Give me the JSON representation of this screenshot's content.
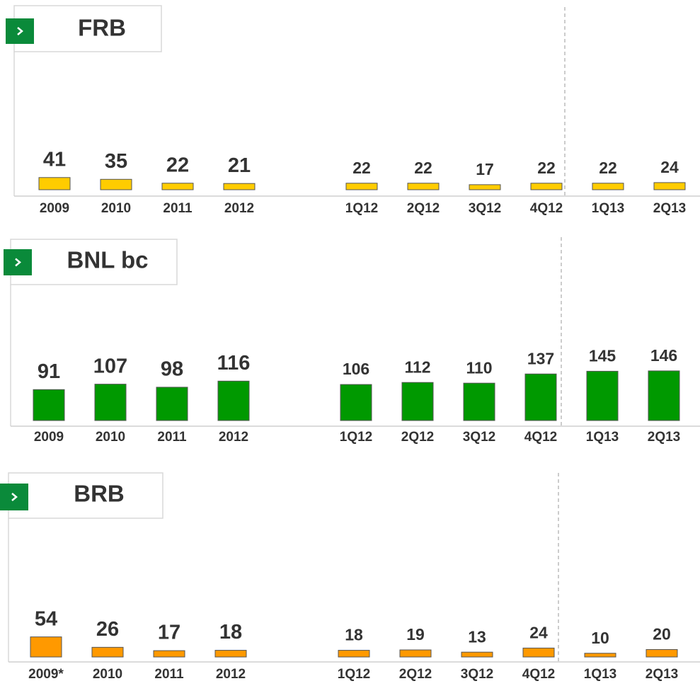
{
  "chart_data": [
    {
      "type": "bar",
      "title": "FRB",
      "categories": [
        "2009",
        "2010",
        "2011",
        "2012",
        "1Q12",
        "2Q12",
        "3Q12",
        "4Q12",
        "1Q13",
        "2Q13"
      ],
      "values": [
        41,
        35,
        22,
        21,
        22,
        22,
        17,
        22,
        22,
        24
      ],
      "color": "#ffcc00",
      "ylim": [
        0,
        400
      ]
    },
    {
      "type": "bar",
      "title": "BNL bc",
      "categories": [
        "2009",
        "2010",
        "2011",
        "2012",
        "1Q12",
        "2Q12",
        "3Q12",
        "4Q12",
        "1Q13",
        "2Q13"
      ],
      "values": [
        91,
        107,
        98,
        116,
        106,
        112,
        110,
        137,
        145,
        146
      ],
      "color": "#009900",
      "ylim": [
        0,
        350
      ]
    },
    {
      "type": "bar",
      "title": "BRB",
      "categories": [
        "2009*",
        "2010",
        "2011",
        "2012",
        "1Q12",
        "2Q12",
        "3Q12",
        "4Q12",
        "1Q13",
        "2Q13"
      ],
      "values": [
        54,
        26,
        17,
        18,
        18,
        19,
        13,
        24,
        10,
        20
      ],
      "color": "#ff9900",
      "ylim": [
        0,
        320
      ]
    }
  ]
}
